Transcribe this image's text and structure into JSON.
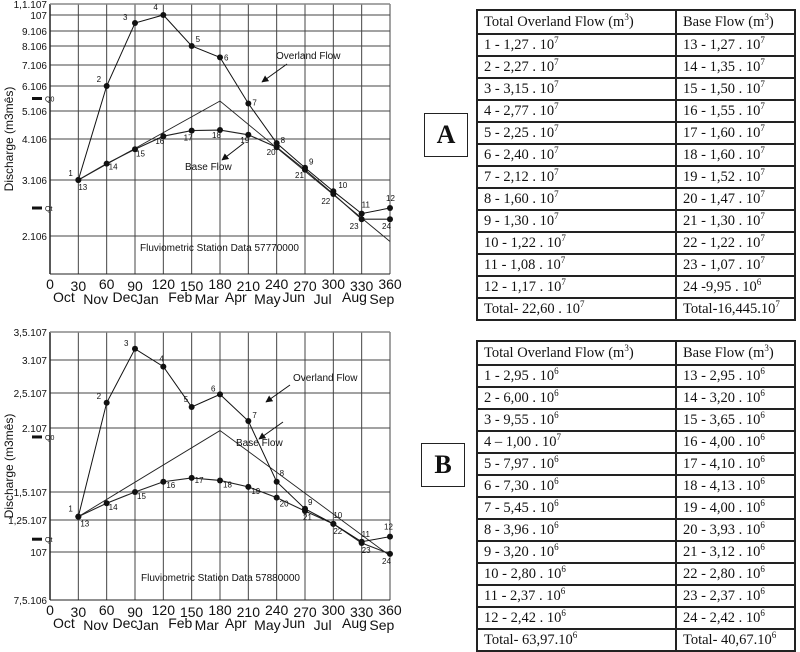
{
  "chart_data": [
    {
      "id": "A",
      "type": "line",
      "title": "",
      "annotation": "Fluviometric Station Data 57770000",
      "xlabel": "",
      "ylabel": "Discharge (m3mês)",
      "x_ticks": [
        0,
        30,
        60,
        90,
        120,
        150,
        180,
        210,
        240,
        270,
        300,
        330,
        360
      ],
      "month_labels": [
        "Oct",
        "Nov",
        "Dec",
        "Jan",
        "Feb",
        "Mar",
        "Apr",
        "May",
        "Jun",
        "Jul",
        "Aug",
        "Sep"
      ],
      "y_tick_labels": [
        "2.106",
        "3.106",
        "4.106",
        "5.106",
        "6.106",
        "7.106",
        "8.106",
        "9.106",
        "107",
        "1,1.107"
      ],
      "y_tick_values": [
        2000000,
        3000000,
        4000000,
        5000000,
        6000000,
        7000000,
        8000000,
        9000000,
        10000000,
        11000000
      ],
      "ylim": [
        1400000,
        11000000
      ],
      "xlim": [
        0,
        360
      ],
      "markers": [
        {
          "label": "Q0",
          "value": 5500000
        },
        {
          "label": "Qt",
          "value": 2500000
        }
      ],
      "series": [
        {
          "name": "Overland Flow",
          "point_labels": [
            "1",
            "2",
            "3",
            "4",
            "5",
            "6",
            "7",
            "8",
            "9",
            "10",
            "11",
            "12"
          ],
          "x": [
            30,
            60,
            90,
            120,
            150,
            180,
            210,
            240,
            270,
            300,
            330,
            360
          ],
          "values": [
            3000000,
            6000000,
            9500000,
            10000000,
            8000000,
            7400000,
            5300000,
            3900000,
            3300000,
            2800000,
            2400000,
            2500000
          ]
        },
        {
          "name": "Base Flow",
          "point_labels": [
            "13",
            "14",
            "15",
            "16",
            "17",
            "18",
            "19",
            "20",
            "21",
            "22",
            "23",
            "24"
          ],
          "x": [
            30,
            60,
            90,
            120,
            150,
            180,
            210,
            240,
            270,
            300,
            330,
            360
          ],
          "values": [
            3000000,
            3400000,
            3750000,
            4100000,
            4300000,
            4320000,
            4150000,
            3800000,
            3250000,
            2750000,
            2300000,
            2300000
          ]
        },
        {
          "name": "Separation line",
          "x": [
            30,
            180,
            360
          ],
          "values": [
            3000000,
            5400000,
            1900000
          ]
        }
      ],
      "legend_arrows": [
        "Overland Flow",
        "Base Flow"
      ]
    },
    {
      "id": "B",
      "type": "line",
      "title": "",
      "annotation": "Fluviometric Station Data 57880000",
      "xlabel": "",
      "ylabel": "Discharge (m3mês)",
      "x_ticks": [
        0,
        30,
        60,
        90,
        120,
        150,
        180,
        210,
        240,
        270,
        300,
        330,
        360
      ],
      "month_labels": [
        "Oct",
        "Nov",
        "Dec",
        "Jan",
        "Feb",
        "Mar",
        "Apr",
        "May",
        "Jun",
        "Jul",
        "Aug",
        "Sep"
      ],
      "y_tick_labels": [
        "7,5.106",
        "107",
        "1,25.107",
        "1,5.107",
        "2.107",
        "2,5.107",
        "3.107",
        "3,5.107"
      ],
      "y_tick_values": [
        7500000,
        10000000,
        12500000,
        15000000,
        20000000,
        25000000,
        30000000,
        35000000
      ],
      "ylim": [
        7500000,
        35000000
      ],
      "xlim": [
        0,
        360
      ],
      "markers": [
        {
          "label": "Q0",
          "value": 19300000
        },
        {
          "label": "Qt",
          "value": 11000000
        }
      ],
      "series": [
        {
          "name": "Overland Flow",
          "point_labels": [
            "1",
            "2",
            "3",
            "4",
            "5",
            "6",
            "7",
            "8",
            "9",
            "10",
            "11",
            "12"
          ],
          "x": [
            30,
            60,
            90,
            120,
            150,
            180,
            210,
            240,
            270,
            300,
            330,
            360
          ],
          "values": [
            12800000,
            23600000,
            32000000,
            29000000,
            23000000,
            24800000,
            21000000,
            15800000,
            13500000,
            12200000,
            10800000,
            11200000
          ]
        },
        {
          "name": "Base Flow",
          "point_labels": [
            "13",
            "14",
            "15",
            "16",
            "17",
            "18",
            "19",
            "20",
            "21",
            "22",
            "23",
            "24"
          ],
          "x": [
            30,
            60,
            90,
            120,
            150,
            180,
            210,
            240,
            270,
            300,
            330,
            360
          ],
          "values": [
            12800000,
            14000000,
            15000000,
            15800000,
            16100000,
            15900000,
            15400000,
            14500000,
            13300000,
            12200000,
            10700000,
            9900000
          ]
        },
        {
          "name": "Separation line",
          "x": [
            30,
            180,
            360
          ],
          "values": [
            12800000,
            19800000,
            9800000
          ]
        }
      ],
      "legend_arrows": [
        "Overland Flow",
        "Base Flow"
      ]
    }
  ],
  "panels": {
    "a": {
      "letter": "A",
      "table": {
        "headers": [
          "Total Overland Flow (m",
          "Base Flow (m"
        ],
        "header_sup": "3",
        "header_close": ")",
        "rows": [
          {
            "left": "1 - 1,27 . 10",
            "left_exp": "7",
            "right": "13 - 1,27 . 10",
            "right_exp": "7"
          },
          {
            "left": "2 - 2,27 . 10",
            "left_exp": "7",
            "right": "14 - 1,35 . 10",
            "right_exp": "7"
          },
          {
            "left": "3 - 3,15 . 10",
            "left_exp": "7",
            "right": "15 - 1,50 . 10",
            "right_exp": "7"
          },
          {
            "left": "4 - 2,77 . 10",
            "left_exp": "7",
            "right": "16 - 1,55 . 10",
            "right_exp": "7"
          },
          {
            "left": "5 - 2,25 . 10",
            "left_exp": "7",
            "right": "17 - 1,60 . 10",
            "right_exp": "7"
          },
          {
            "left": "6 - 2,40 . 10",
            "left_exp": "7",
            "right": "18 - 1,60 . 10",
            "right_exp": "7"
          },
          {
            "left": "7 - 2,12 . 10",
            "left_exp": "7",
            "right": "19 - 1,52 . 10",
            "right_exp": "7"
          },
          {
            "left": "8 - 1,60 . 10",
            "left_exp": "7",
            "right": "20 - 1,47 . 10",
            "right_exp": "7"
          },
          {
            "left": "9 - 1,30 . 10",
            "left_exp": "7",
            "right": "21 - 1,30 . 10",
            "right_exp": "7"
          },
          {
            "left": "10 - 1,22 . 10",
            "left_exp": "7",
            "right": "22 - 1,22 . 10",
            "right_exp": "7"
          },
          {
            "left": "11 - 1,08 . 10",
            "left_exp": "7",
            "right": "23 - 1,07 . 10",
            "right_exp": "7"
          },
          {
            "left": "12 - 1,17 . 10",
            "left_exp": "7",
            "right": "24 -9,95 . 10",
            "right_exp": "6"
          },
          {
            "left": "Total- 22,60 . 10",
            "left_exp": "7",
            "right": "Total-16,445.10",
            "right_exp": "7"
          }
        ]
      }
    },
    "b": {
      "letter": "B",
      "table": {
        "headers": [
          "Total Overland Flow (m",
          "Base Flow (m"
        ],
        "header_sup": "3",
        "header_close": ")",
        "rows": [
          {
            "left": "1 - 2,95 . 10",
            "left_exp": "6",
            "right": "13 - 2,95 . 10",
            "right_exp": "6"
          },
          {
            "left": "2 - 6,00 . 10",
            "left_exp": "6",
            "right": "14 - 3,20 . 10",
            "right_exp": "6"
          },
          {
            "left": "3 - 9,55 . 10",
            "left_exp": "6",
            "right": "15 - 3,65 . 10",
            "right_exp": "6"
          },
          {
            "left": "4 – 1,00 . 10",
            "left_exp": "7",
            "right": "16 - 4,00 . 10",
            "right_exp": "6"
          },
          {
            "left": "5 - 7,97 . 10",
            "left_exp": "6",
            "right": "17 - 4,10 . 10",
            "right_exp": "6"
          },
          {
            "left": "6 - 7,30 . 10",
            "left_exp": "6",
            "right": "18 - 4,13 . 10",
            "right_exp": "6"
          },
          {
            "left": "7 - 5,45 . 10",
            "left_exp": "6",
            "right": "19 - 4,00 . 10",
            "right_exp": "6"
          },
          {
            "left": "8 - 3,96 . 10",
            "left_exp": "6",
            "right": "20 - 3,93 . 10",
            "right_exp": "6"
          },
          {
            "left": "9 - 3,20 . 10",
            "left_exp": "6",
            "right": "21 - 3,12 . 10",
            "right_exp": "6"
          },
          {
            "left": "10 - 2,80 . 10",
            "left_exp": "6",
            "right": "22 - 2,80 . 10",
            "right_exp": "6"
          },
          {
            "left": "11 - 2,37 . 10",
            "left_exp": "6",
            "right": "23 - 2,37 . 10",
            "right_exp": "6"
          },
          {
            "left": "12 - 2,42 . 10",
            "left_exp": "6",
            "right": "24 - 2,42 . 10",
            "right_exp": "6"
          },
          {
            "left": "Total- 63,97.10",
            "left_exp": "6",
            "right": "Total- 40,67.10",
            "right_exp": "6"
          }
        ]
      }
    }
  }
}
